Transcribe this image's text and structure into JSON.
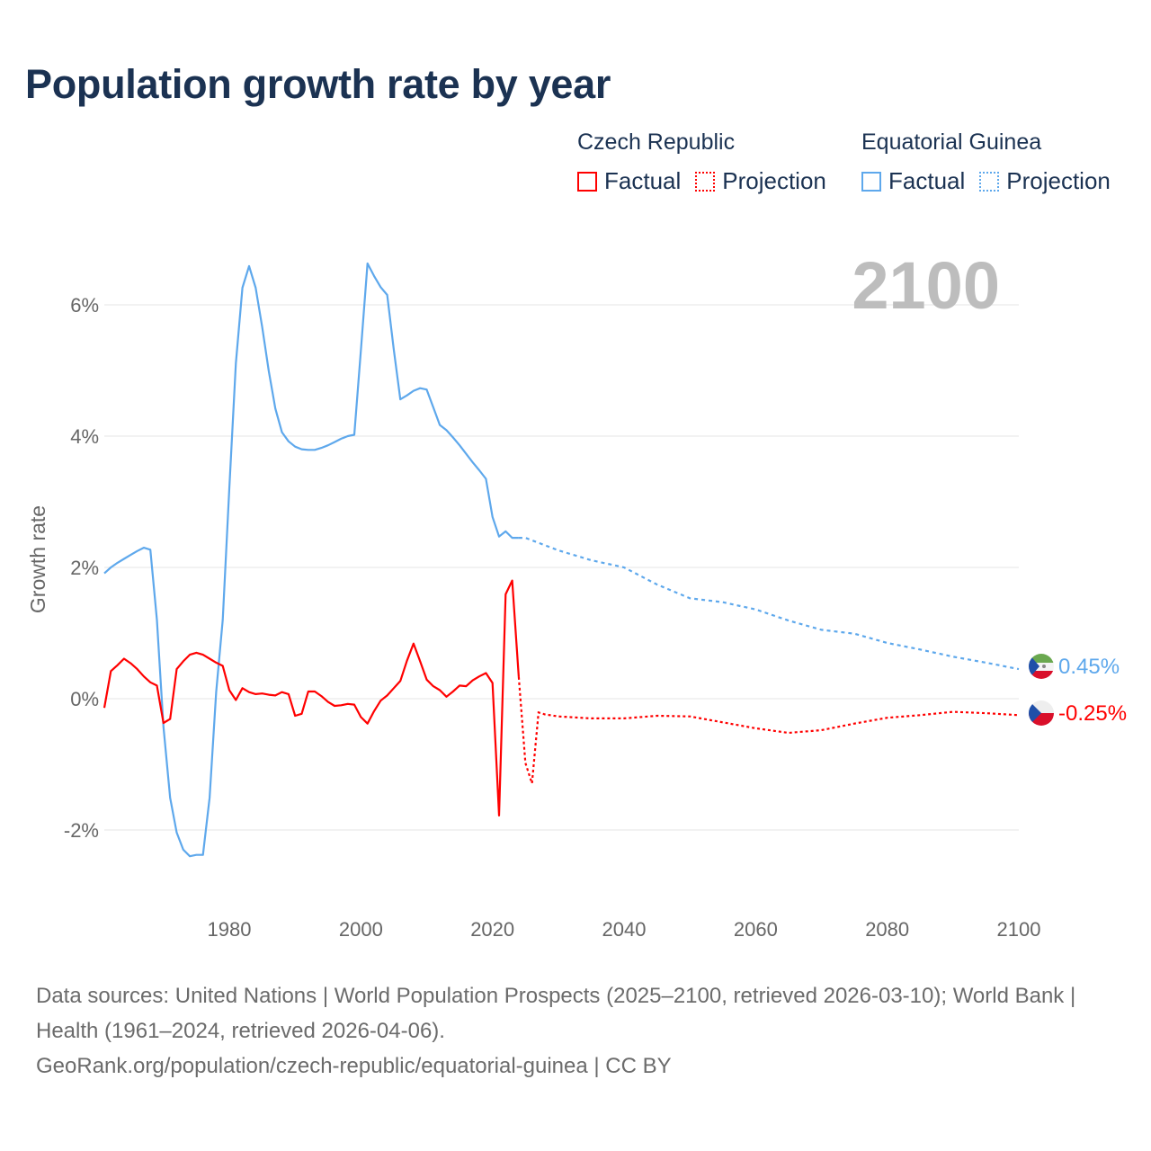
{
  "title": "Population growth rate by year",
  "legend": [
    {
      "country": "Czech Republic",
      "factual": "Factual",
      "projection": "Projection",
      "color": "#ff0000"
    },
    {
      "country": "Equatorial Guinea",
      "factual": "Factual",
      "projection": "Projection",
      "color": "#5ea8ec"
    }
  ],
  "year_label": "2100",
  "end_labels": {
    "eg": "0.45%",
    "cz": "-0.25%"
  },
  "footer": {
    "line1": "Data sources: United Nations | World Population Prospects (2025–2100, retrieved 2026-03-10); World Bank | Health (1961–2024, retrieved 2026-04-06).",
    "line2": "GeoRank.org/population/czech-republic/equatorial-guinea | CC BY"
  },
  "chart_data": {
    "type": "line",
    "title": "Population growth rate by year",
    "xlabel": "",
    "ylabel": "Growth rate",
    "xlim": [
      1961,
      2100
    ],
    "ylim": [
      -3,
      7
    ],
    "x_ticks": [
      1980,
      2000,
      2020,
      2040,
      2060,
      2080,
      2100
    ],
    "y_ticks": [
      {
        "v": -2,
        "label": "-2%"
      },
      {
        "v": 0,
        "label": "0%"
      },
      {
        "v": 2,
        "label": "2%"
      },
      {
        "v": 4,
        "label": "4%"
      },
      {
        "v": 6,
        "label": "6%"
      }
    ],
    "grid": true,
    "legend_position": "top-right",
    "series": [
      {
        "name": "Equatorial Guinea",
        "color": "#5ea8ec",
        "factual": {
          "start": 1961,
          "values": [
            1.91,
            2.0,
            2.07,
            2.13,
            2.19,
            2.25,
            2.3,
            2.27,
            1.2,
            -0.43,
            -1.51,
            -2.04,
            -2.3,
            -2.4,
            -2.38,
            -2.38,
            -1.51,
            0.1,
            1.2,
            3.2,
            5.11,
            6.26,
            6.59,
            6.26,
            5.66,
            4.99,
            4.42,
            4.06,
            3.92,
            3.84,
            3.8,
            3.79,
            3.79,
            3.82,
            3.86,
            3.91,
            3.96,
            4.0,
            4.02,
            5.3,
            6.63,
            6.44,
            6.27,
            6.15,
            5.32,
            4.56,
            4.62,
            4.69,
            4.73,
            4.71,
            4.44,
            4.17,
            4.09,
            3.98,
            3.86,
            3.73,
            3.6,
            3.48,
            3.35,
            2.77,
            2.47,
            2.55,
            2.45,
            2.45
          ]
        },
        "projection": {
          "years": [
            2024,
            2025,
            2030,
            2035,
            2040,
            2045,
            2050,
            2055,
            2060,
            2065,
            2070,
            2075,
            2080,
            2085,
            2090,
            2095,
            2100
          ],
          "values": [
            2.45,
            2.45,
            2.26,
            2.11,
            2.0,
            1.74,
            1.53,
            1.47,
            1.36,
            1.19,
            1.05,
            0.99,
            0.85,
            0.75,
            0.64,
            0.55,
            0.45
          ]
        }
      },
      {
        "name": "Czech Republic",
        "color": "#ff0000",
        "factual": {
          "start": 1961,
          "values": [
            -0.14,
            0.42,
            0.51,
            0.61,
            0.54,
            0.45,
            0.34,
            0.25,
            0.2,
            -0.37,
            -0.31,
            0.45,
            0.57,
            0.67,
            0.7,
            0.67,
            0.61,
            0.55,
            0.5,
            0.13,
            -0.02,
            0.16,
            0.1,
            0.07,
            0.08,
            0.06,
            0.05,
            0.1,
            0.07,
            -0.26,
            -0.23,
            0.11,
            0.11,
            0.04,
            -0.05,
            -0.11,
            -0.1,
            -0.08,
            -0.09,
            -0.28,
            -0.38,
            -0.19,
            -0.03,
            0.05,
            0.16,
            0.27,
            0.58,
            0.84,
            0.57,
            0.29,
            0.19,
            0.13,
            0.03,
            0.11,
            0.2,
            0.19,
            0.28,
            0.34,
            0.39,
            0.24,
            -1.78,
            1.59,
            1.8,
            0.33
          ]
        },
        "projection": {
          "years": [
            2024,
            2025,
            2026,
            2027,
            2028,
            2030,
            2035,
            2040,
            2045,
            2050,
            2055,
            2060,
            2065,
            2070,
            2075,
            2080,
            2085,
            2090,
            2095,
            2100
          ],
          "values": [
            0.33,
            -0.98,
            -1.29,
            -0.21,
            -0.24,
            -0.27,
            -0.3,
            -0.3,
            -0.26,
            -0.27,
            -0.36,
            -0.45,
            -0.52,
            -0.48,
            -0.38,
            -0.29,
            -0.25,
            -0.2,
            -0.22,
            -0.25
          ]
        }
      }
    ]
  }
}
